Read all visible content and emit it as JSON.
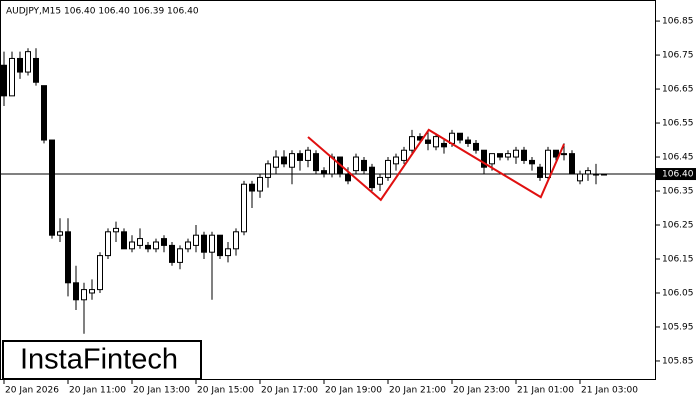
{
  "chart_data": {
    "type": "candlestick",
    "title": "AUDJPY,M15  106.40 106.40 106.39 106.40",
    "open": [
      106.72,
      106.63,
      106.74,
      106.7,
      106.74,
      106.66,
      106.5,
      106.22,
      106.23,
      106.08,
      106.03,
      106.05,
      106.06,
      106.16,
      106.23,
      106.23,
      106.18,
      106.19,
      106.19,
      106.18,
      106.21,
      106.19,
      106.14,
      106.18,
      106.19,
      106.22,
      106.17,
      106.22,
      106.16,
      106.18,
      106.23,
      106.37,
      106.35,
      106.39,
      106.42,
      106.45,
      106.42,
      106.46,
      106.44,
      106.46,
      106.41,
      106.4,
      106.45,
      106.4,
      106.41,
      106.44,
      106.42,
      106.37,
      106.39,
      106.43,
      106.44,
      106.47,
      106.51,
      106.5,
      106.48,
      106.49,
      106.49,
      106.52,
      106.5,
      106.49,
      106.47,
      106.43,
      106.46,
      106.45,
      106.45,
      106.47,
      106.44,
      106.42,
      106.39,
      106.47,
      106.46,
      106.46,
      106.38,
      106.4,
      106.4,
      106.4
    ],
    "high": [
      106.76,
      106.76,
      106.76,
      106.77,
      106.77,
      106.66,
      106.5,
      106.27,
      106.27,
      106.13,
      106.08,
      106.09,
      106.17,
      106.24,
      106.26,
      106.24,
      106.22,
      106.24,
      106.2,
      106.21,
      106.22,
      106.2,
      106.19,
      106.21,
      106.25,
      106.23,
      106.23,
      106.22,
      106.2,
      106.24,
      106.38,
      106.38,
      106.4,
      106.44,
      106.47,
      106.47,
      106.47,
      106.47,
      106.48,
      106.47,
      106.42,
      106.46,
      106.45,
      106.42,
      106.46,
      106.45,
      106.43,
      106.4,
      106.45,
      106.46,
      106.48,
      106.53,
      106.52,
      106.53,
      106.52,
      106.5,
      106.53,
      106.52,
      106.51,
      106.5,
      106.47,
      106.46,
      106.46,
      106.47,
      106.48,
      106.48,
      106.45,
      106.43,
      106.48,
      106.47,
      106.49,
      106.47,
      106.41,
      106.42,
      106.43,
      106.4
    ],
    "low": [
      106.6,
      106.63,
      106.68,
      106.69,
      106.66,
      106.49,
      106.21,
      106.2,
      106.04,
      106.0,
      105.93,
      106.03,
      106.05,
      106.15,
      106.2,
      106.18,
      106.17,
      106.18,
      106.17,
      106.17,
      106.17,
      106.13,
      106.12,
      106.17,
      106.17,
      106.15,
      106.03,
      106.15,
      106.14,
      106.16,
      106.22,
      106.3,
      106.33,
      106.36,
      106.4,
      106.42,
      106.37,
      106.41,
      106.42,
      106.4,
      106.39,
      106.39,
      106.39,
      106.37,
      106.4,
      106.4,
      106.35,
      106.35,
      106.38,
      106.41,
      106.43,
      106.46,
      106.49,
      106.47,
      106.47,
      106.46,
      106.48,
      106.49,
      106.48,
      106.46,
      106.4,
      106.41,
      106.44,
      106.44,
      106.43,
      106.43,
      106.41,
      106.38,
      106.38,
      106.44,
      106.44,
      106.4,
      106.37,
      106.38,
      106.37,
      106.4
    ],
    "close": [
      106.63,
      106.74,
      106.7,
      106.76,
      106.67,
      106.5,
      106.22,
      106.23,
      106.08,
      106.03,
      106.06,
      106.06,
      106.16,
      106.23,
      106.24,
      106.18,
      106.2,
      106.21,
      106.18,
      106.2,
      106.19,
      106.14,
      106.18,
      106.2,
      106.22,
      106.17,
      106.22,
      106.16,
      106.18,
      106.23,
      106.37,
      106.35,
      106.39,
      106.43,
      106.45,
      106.43,
      106.46,
      106.44,
      106.47,
      106.41,
      106.4,
      106.45,
      106.4,
      106.38,
      106.45,
      106.41,
      106.36,
      106.39,
      106.44,
      106.45,
      106.47,
      106.51,
      106.5,
      106.49,
      106.51,
      106.48,
      106.52,
      106.5,
      106.49,
      106.47,
      106.42,
      106.46,
      106.45,
      106.46,
      106.47,
      106.44,
      106.43,
      106.39,
      106.47,
      106.45,
      106.46,
      106.4,
      106.4,
      106.41,
      106.4,
      106.4
    ],
    "up_color": "#ffffff",
    "down_color": "#000000",
    "ylim": [
      105.794,
      106.912
    ],
    "yticks": [
      106.85,
      106.75,
      106.65,
      106.55,
      106.45,
      106.35,
      106.25,
      106.15,
      106.05,
      105.95,
      105.85
    ],
    "xlim": [
      -0.5,
      81.5
    ],
    "xticks": [
      {
        "value": 0,
        "label": "20 Jan 2026"
      },
      {
        "value": 8,
        "label": "20 Jan 11:00"
      },
      {
        "value": 16,
        "label": "20 Jan 13:00"
      },
      {
        "value": 24,
        "label": "20 Jan 15:00"
      },
      {
        "value": 32,
        "label": "20 Jan 17:00"
      },
      {
        "value": 40,
        "label": "20 Jan 19:00"
      },
      {
        "value": 48,
        "label": "20 Jan 21:00"
      },
      {
        "value": 56,
        "label": "20 Jan 23:00"
      },
      {
        "value": 64,
        "label": "21 Jan 01:00"
      },
      {
        "value": 72,
        "label": "21 Jan 03:00"
      }
    ],
    "current_price": {
      "value": 106.4,
      "label": "106.40"
    },
    "pattern": {
      "color": "#e01010",
      "x": [
        38,
        47.1,
        53.1,
        67.1,
        70
      ],
      "values": [
        106.509,
        106.324,
        106.53,
        106.332,
        106.488
      ]
    }
  },
  "logo": "InstaFintech"
}
